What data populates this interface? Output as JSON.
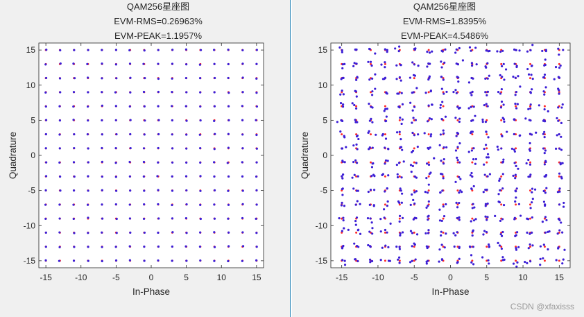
{
  "watermark": "CSDN @xfaxisss",
  "chart_data": [
    {
      "type": "scatter",
      "title_lines": [
        "QAM256星座图",
        "EVM-RMS=0.26963%",
        "EVM-PEAK=1.1957%"
      ],
      "xlabel": "In-Phase",
      "ylabel": "Quadrature",
      "xlim": [
        -16,
        16
      ],
      "ylim": [
        -16,
        16
      ],
      "xticks": [
        -15,
        -10,
        -5,
        0,
        5,
        10,
        15
      ],
      "yticks": [
        -15,
        -10,
        -5,
        0,
        5,
        10,
        15
      ],
      "grid": false,
      "constellation_levels": [
        -15,
        -13,
        -11,
        -9,
        -7,
        -5,
        -3,
        -1,
        1,
        3,
        5,
        7,
        9,
        11,
        13,
        15
      ],
      "spread": 0.04,
      "series": [
        {
          "color": "#ff2a2a"
        },
        {
          "color": "#3c1fd6"
        }
      ]
    },
    {
      "type": "scatter",
      "title_lines": [
        "QAM256星座图",
        "EVM-RMS=1.8395%",
        "EVM-PEAK=4.5486%"
      ],
      "xlabel": "In-Phase",
      "ylabel": "Quadrature",
      "xlim": [
        -16.5,
        16.5
      ],
      "ylim": [
        -16,
        16
      ],
      "xticks": [
        -15,
        -10,
        -5,
        0,
        5,
        10,
        15
      ],
      "yticks": [
        -15,
        -10,
        -5,
        0,
        5,
        10,
        15
      ],
      "grid": false,
      "constellation_levels": [
        -15,
        -13,
        -11,
        -9,
        -7,
        -5,
        -3,
        -1,
        1,
        3,
        5,
        7,
        9,
        11,
        13,
        15
      ],
      "spread": 0.3,
      "series": [
        {
          "color": "#ff2a2a"
        },
        {
          "color": "#3c1fd6"
        }
      ]
    }
  ]
}
